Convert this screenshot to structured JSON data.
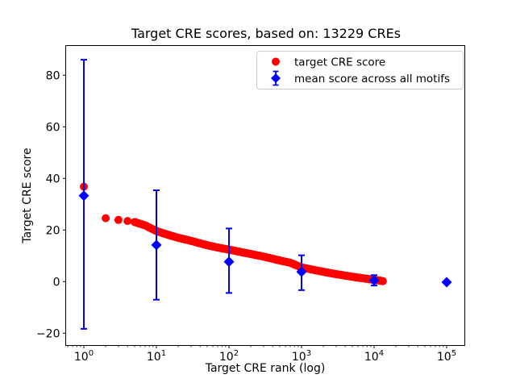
{
  "figure": {
    "title": "Target CRE scores, based on: 13229 CREs",
    "xlabel": "Target CRE rank (log)",
    "ylabel": "Target CRE score",
    "background": "#ffffff"
  },
  "colors": {
    "target_series": "#ff0000",
    "mean_series": "#0000ff",
    "spine": "#000000",
    "legend_border": "#cccccc"
  },
  "legend": {
    "position": "upper right",
    "entries": [
      {
        "marker": "circle",
        "label": "target CRE score"
      },
      {
        "marker": "diamond-errorbar",
        "label": "mean score across all motifs"
      }
    ]
  },
  "chart_data": {
    "type": "scatter",
    "title": "Target CRE scores, based on: 13229 CREs",
    "xlabel": "Target CRE rank (log)",
    "ylabel": "Target CRE score",
    "x_scale": "log",
    "x_tick_exponents": [
      0,
      1,
      2,
      3,
      4,
      5
    ],
    "y_ticks": [
      -20,
      0,
      20,
      40,
      60,
      80
    ],
    "xlim_log10": [
      -0.25,
      5.25
    ],
    "ylim": [
      -24.75,
      91.5
    ],
    "grid": false,
    "n_cres": 13229,
    "series": [
      {
        "name": "target CRE score",
        "type": "scatter",
        "color": "#ff0000",
        "marker": "circle",
        "separate_ranks": [
          1,
          2,
          3,
          4
        ],
        "band_rank_range": [
          5,
          13229
        ],
        "anchor_ranks": [
          1,
          2,
          3,
          4,
          5,
          7,
          10,
          15,
          20,
          30,
          50,
          70,
          100,
          150,
          200,
          300,
          500,
          700,
          1000,
          1500,
          2000,
          3000,
          5000,
          7000,
          10000,
          13229
        ],
        "anchor_scores": [
          36.8,
          24.6,
          23.9,
          23.5,
          23.1,
          21.8,
          19.6,
          18.0,
          17.0,
          15.8,
          14.1,
          13.2,
          12.4,
          11.4,
          10.7,
          9.7,
          8.2,
          7.3,
          5.5,
          4.5,
          3.8,
          2.9,
          1.9,
          1.3,
          0.7,
          0.2
        ]
      },
      {
        "name": "mean score across all motifs",
        "type": "errorbar",
        "color": "#0000ff",
        "marker": "diamond",
        "x": [
          1,
          10,
          100,
          1000,
          10000,
          100000
        ],
        "mean": [
          33.3,
          14.2,
          7.7,
          3.8,
          0.5,
          -0.2
        ],
        "err_lo": [
          -18.3,
          -7.0,
          -4.4,
          -3.3,
          -1.5,
          -0.2
        ],
        "err_hi": [
          86.0,
          35.4,
          20.6,
          10.2,
          2.5,
          -0.2
        ]
      }
    ]
  }
}
